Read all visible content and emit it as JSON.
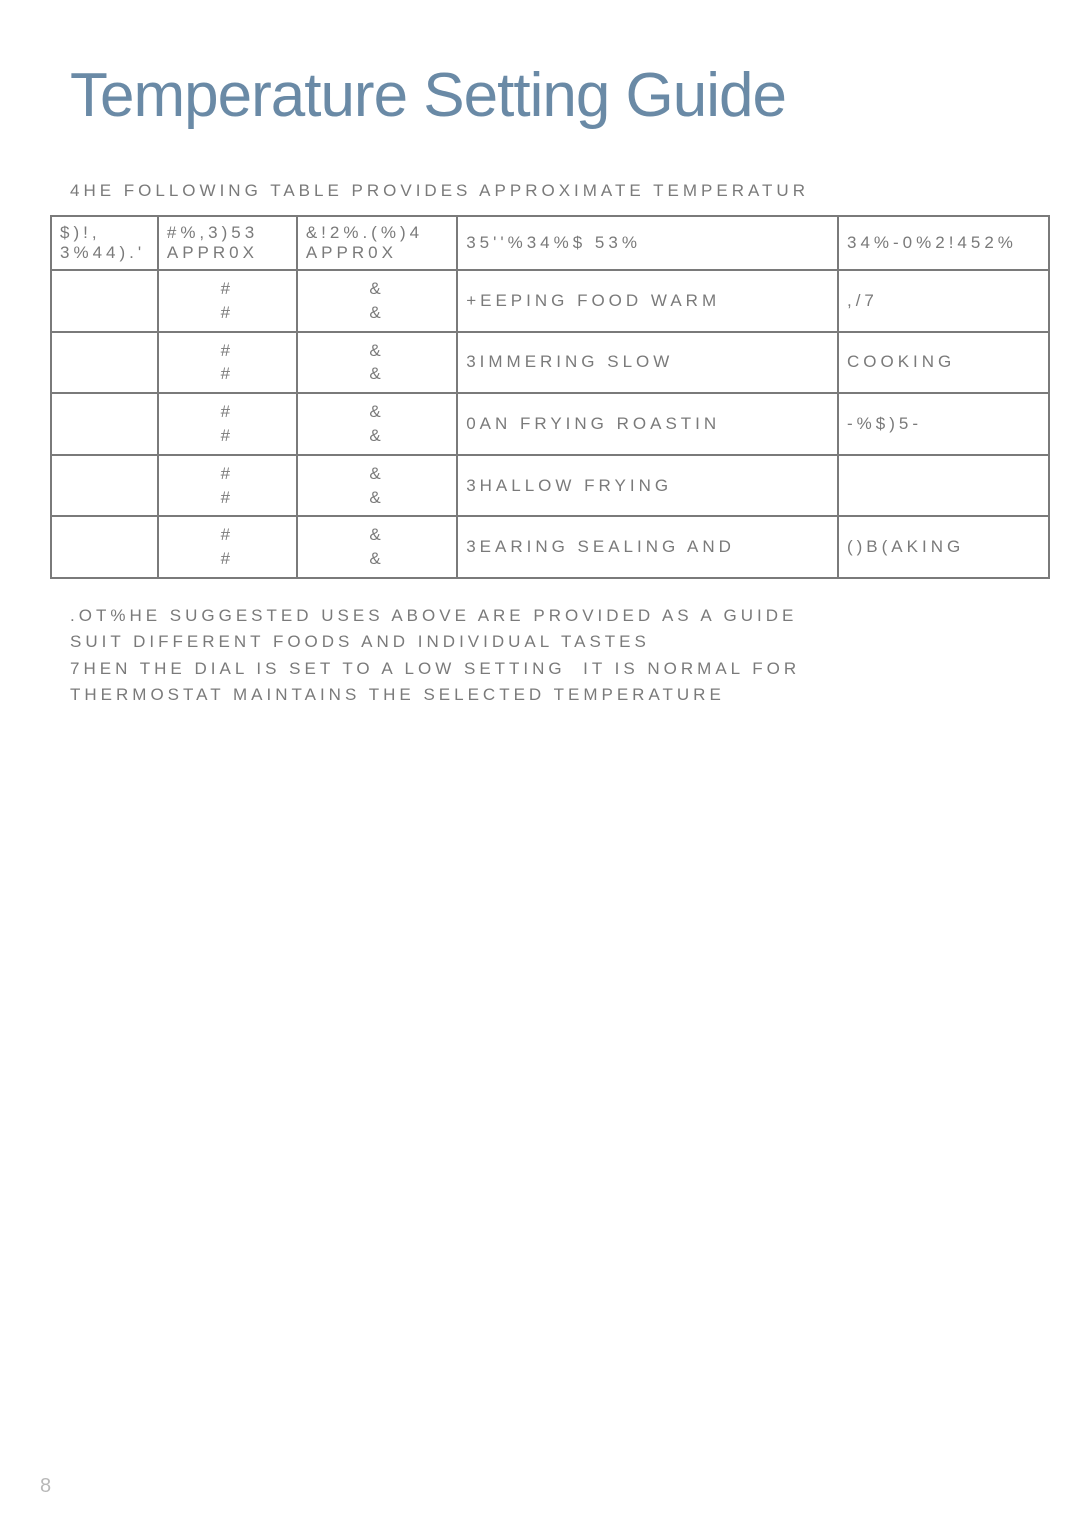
{
  "title": "Temperature Setting Guide",
  "intro": "4HE FOLLOWING TABLE PROVIDES APPROXIMATE TEMPERATUR",
  "headers": {
    "dial_l1": "$)!,",
    "dial_l2": "3%44).'",
    "degC_l1": "#%,3)53",
    "degC_l2": "APPR0X",
    "degF_l1": "&!2%.(%)4",
    "degF_l2": "APPR0X",
    "use": "35''%34%$ 53%",
    "struct_l1": "34%-0%2!452%",
    "struct_l2": ""
  },
  "rows": [
    {
      "dial": "",
      "c1": "#",
      "c2": "#",
      "f1": "&",
      "f2": "&",
      "use": "+EEPING FOOD WARM",
      "struct": ",/7"
    },
    {
      "dial": "",
      "c1": "#",
      "c2": "#",
      "f1": "&",
      "f2": "&",
      "use": "3IMMERING  SLOW",
      "struct": "COOKING"
    },
    {
      "dial": "",
      "c1": "#",
      "c2": "#",
      "f1": "&",
      "f2": "&",
      "use": "0AN FRYING  ROASTIN",
      "struct": "-%$)5-"
    },
    {
      "dial": "",
      "c1": "#",
      "c2": "#",
      "f1": "&",
      "f2": "&",
      "use": "3HALLOW FRYING",
      "struct": ""
    },
    {
      "dial": "",
      "c1": "#",
      "c2": "#",
      "f1": "&",
      "f2": "&",
      "use": "3EARING  SEALING AND",
      "struct": "()B(AKING"
    }
  ],
  "note_lines": [
    ".OT%HE SUGGESTED USES ABOVE ARE PROVIDED AS A GUIDE",
    "SUIT DIFFERENT FOODS AND INDIVIDUAL TASTES",
    "7HEN THE DIAL IS SET TO A LOW SETTING  IT IS NORMAL FOR",
    "THERMOSTAT MAINTAINS THE SELECTED TEMPERATURE"
  ],
  "page_number": "8",
  "style": {
    "title_color": "#6a8aa6",
    "text_color": "#7a7a7a",
    "border_color": "#7a7a7a",
    "pagenum_color": "#b8b8b8",
    "title_fontsize": 62,
    "body_fontsize": 17,
    "letter_spacing": 4
  }
}
